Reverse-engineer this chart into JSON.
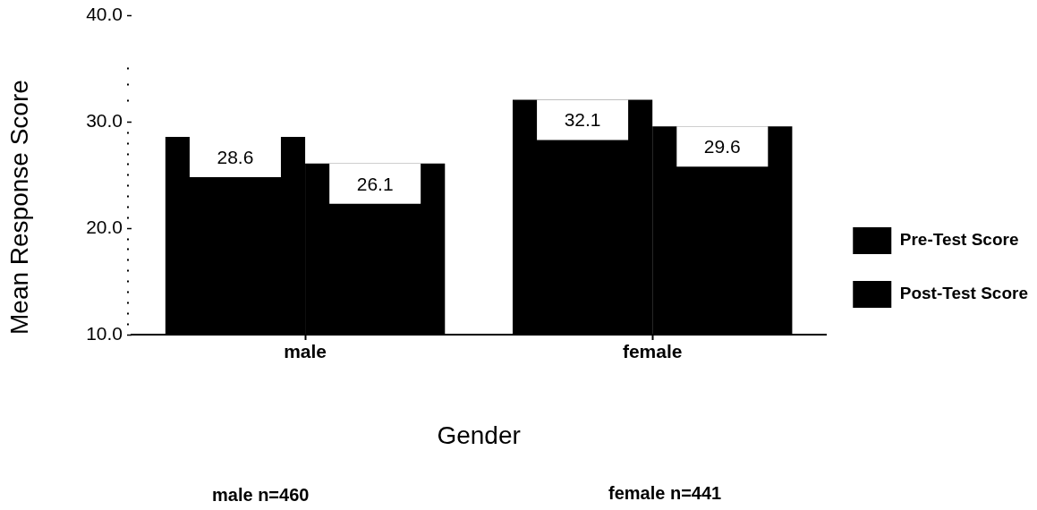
{
  "chart_data": {
    "type": "bar",
    "categories": [
      "male",
      "female"
    ],
    "series": [
      {
        "name": "Pre-Test Score",
        "color": "#000000",
        "values": [
          28.6,
          32.1
        ]
      },
      {
        "name": "Post-Test Score",
        "color": "#000000",
        "values": [
          26.1,
          29.6
        ]
      }
    ],
    "xlabel": "Gender",
    "ylabel": "Mean Response Score",
    "ylim": [
      10,
      40
    ],
    "yticks": [
      {
        "value": 10,
        "label": "10.0"
      },
      {
        "value": 11,
        "label": null
      },
      {
        "value": 12,
        "label": null
      },
      {
        "value": 13,
        "label": null
      },
      {
        "value": 14,
        "label": null
      },
      {
        "value": 15,
        "label": null
      },
      {
        "value": 16,
        "label": null
      },
      {
        "value": 17,
        "label": null
      },
      {
        "value": 18,
        "label": null
      },
      {
        "value": 19,
        "label": null
      },
      {
        "value": 20,
        "label": "20.0"
      },
      {
        "value": 21,
        "label": null
      },
      {
        "value": 22,
        "label": null
      },
      {
        "value": 23,
        "label": null
      },
      {
        "value": 24,
        "label": null
      },
      {
        "value": 25,
        "label": null
      },
      {
        "value": 26,
        "label": null
      },
      {
        "value": 27,
        "label": null
      },
      {
        "value": 28,
        "label": null
      },
      {
        "value": 29,
        "label": null
      },
      {
        "value": 30,
        "label": "30.0"
      },
      {
        "value": 32,
        "label": null
      },
      {
        "value": 33.5,
        "label": null
      },
      {
        "value": 35,
        "label": null
      },
      {
        "value": 40,
        "label": "40.0"
      }
    ],
    "legend": "right",
    "data_labels": true,
    "annotations": [
      "male n=460",
      "female n=441"
    ]
  }
}
